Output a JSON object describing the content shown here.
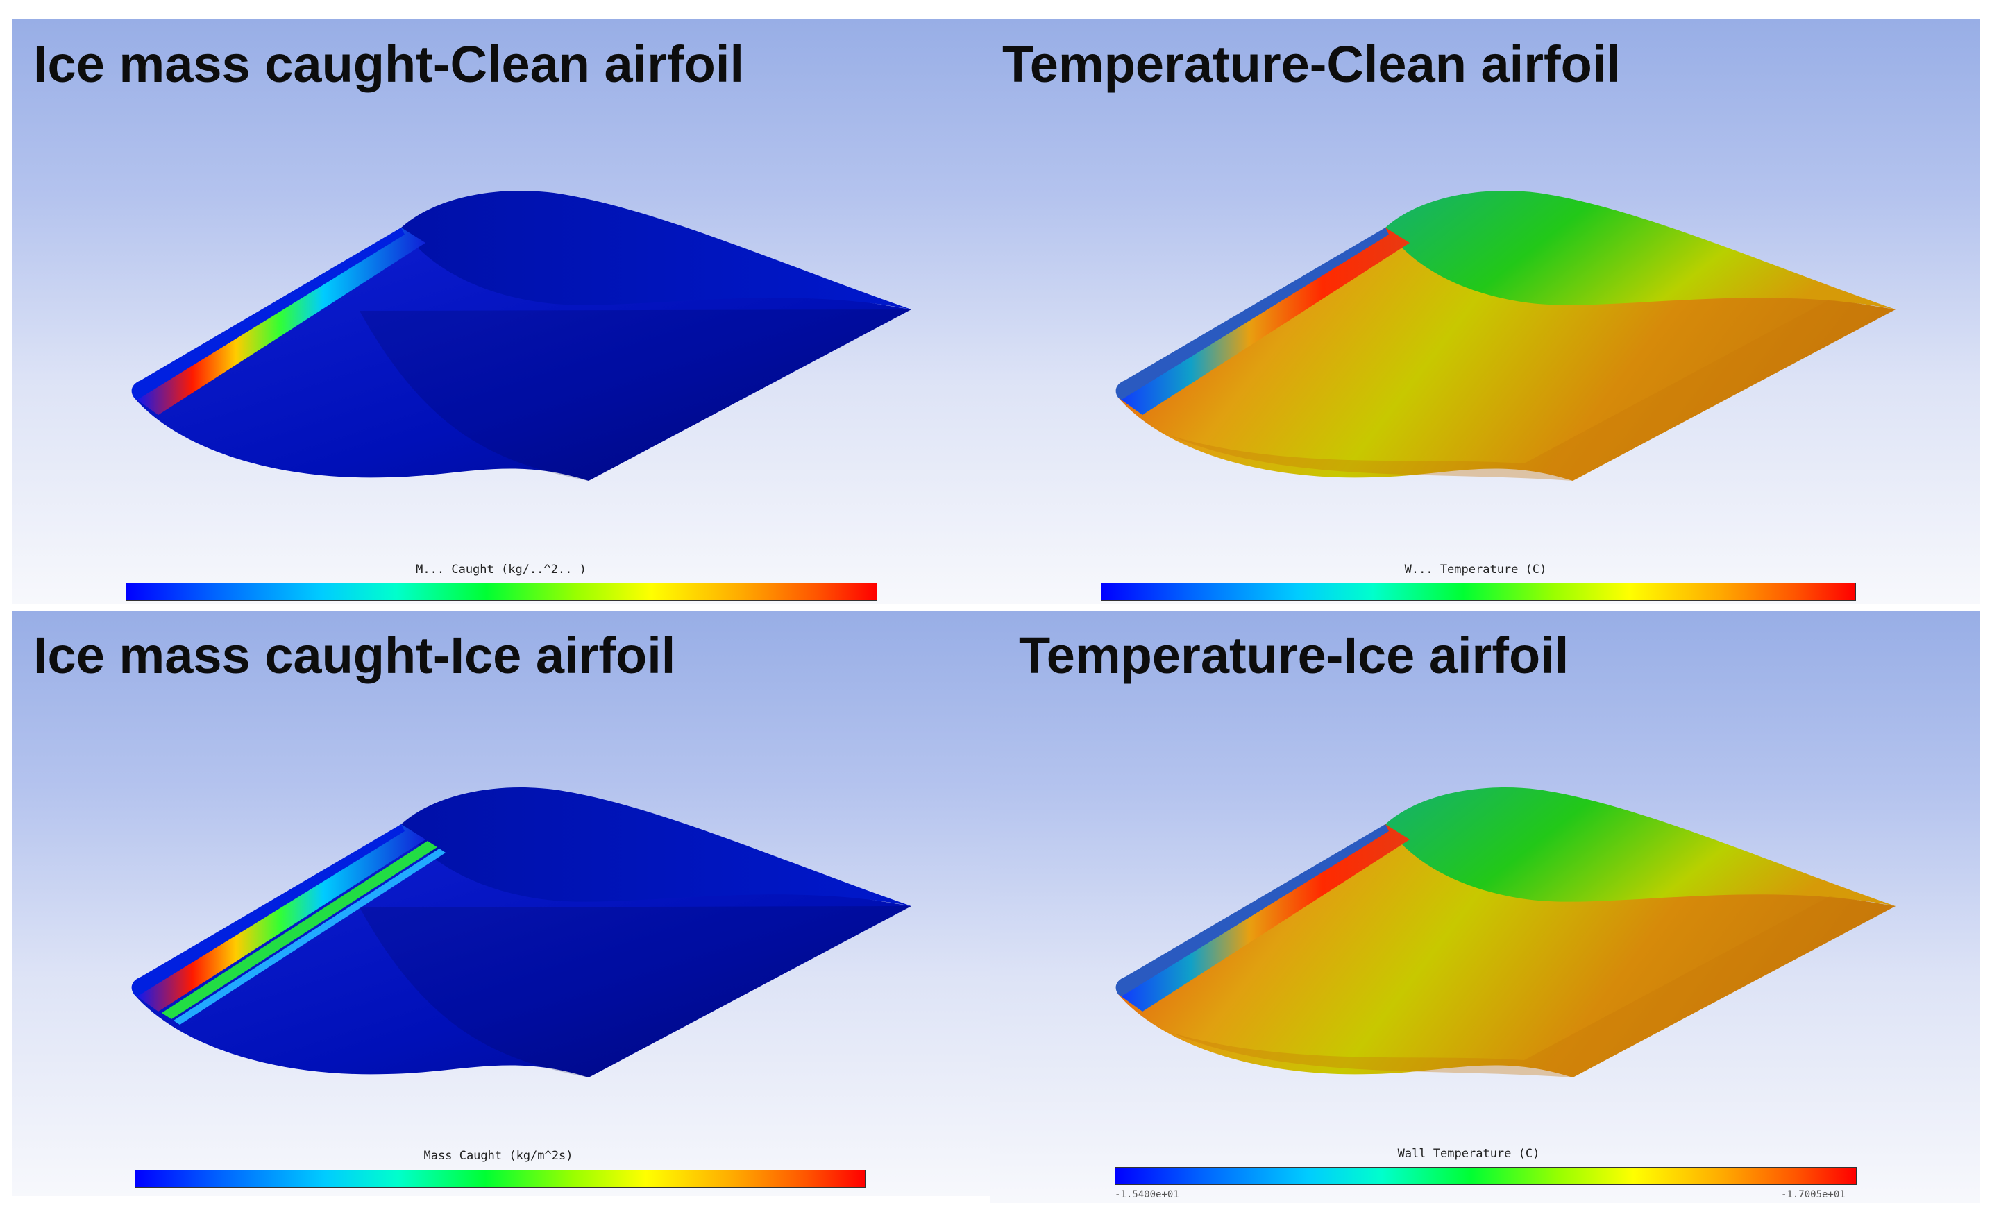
{
  "panels": [
    {
      "title": "Ice mass caught-Clean airfoil",
      "colorbar_label": "M...  Caught (kg/..^2.. )",
      "field": "mass-caught",
      "shape": "clean"
    },
    {
      "title": "Temperature-Clean airfoil",
      "colorbar_label": "W...  Temperature  (C)",
      "field": "temperature",
      "shape": "clean"
    },
    {
      "title": "Ice mass caught-Ice airfoil",
      "colorbar_label": "Mass Caught (kg/m^2s)",
      "field": "mass-caught",
      "shape": "ice"
    },
    {
      "title": "Temperature-Ice airfoil",
      "colorbar_label": "Wall Temperature (C)",
      "field": "temperature",
      "shape": "ice",
      "colorbar_min": "-1.5400e+01",
      "colorbar_max": "-1.7005e+01"
    }
  ],
  "colors": {
    "background_top": "#98aee6",
    "background_bottom": "#f7f8fc",
    "mass_caught_base": "#0010c8",
    "temperature_leading": "#e02a10",
    "temperature_upper": "#1ec81e",
    "temperature_trailing": "#c77a0a"
  }
}
